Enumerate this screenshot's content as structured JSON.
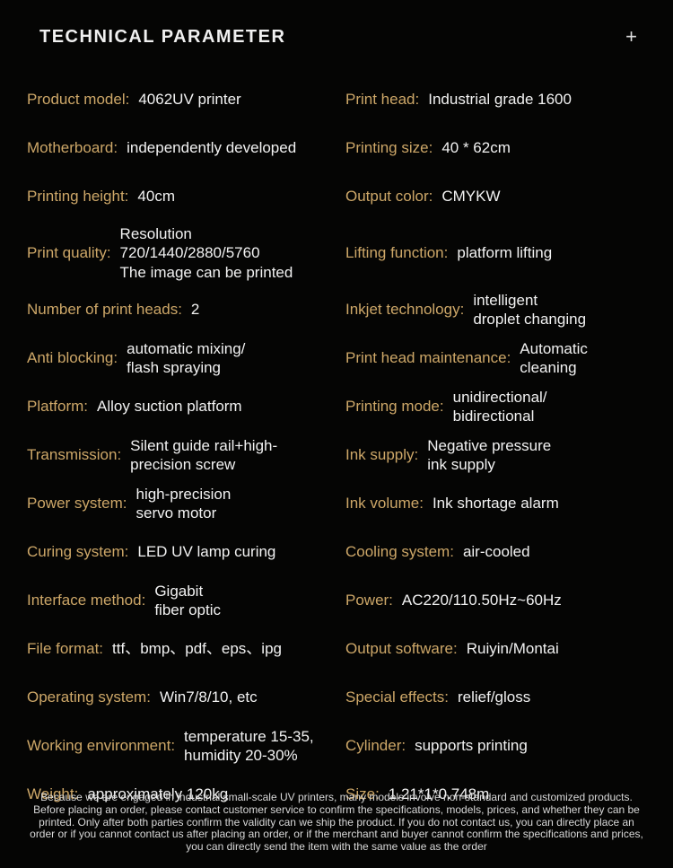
{
  "colors": {
    "background": "#050504",
    "label": "#cda768",
    "value": "#f2f2f2",
    "title": "#f0f0f0",
    "footer": "#d8d8d8"
  },
  "header": {
    "title": "TECHNICAL PARAMETER",
    "plus": "+"
  },
  "rows": [
    {
      "left": {
        "label": "Product model:",
        "value": "4062UV printer"
      },
      "right": {
        "label": "Print head:",
        "value": "Industrial grade 1600"
      }
    },
    {
      "left": {
        "label": "Motherboard:",
        "value": "independently developed"
      },
      "right": {
        "label": "Printing size:",
        "value": "40 * 62cm"
      }
    },
    {
      "left": {
        "label": "Printing height:",
        "value": "40cm"
      },
      "right": {
        "label": "Output color:",
        "value": "CMYKW"
      }
    },
    {
      "left": {
        "label": "Print quality:",
        "value": "Resolution 720/1440/2880/5760\nThe image can be printed",
        "small": true
      },
      "right": {
        "label": "Lifting function:",
        "value": "platform lifting"
      }
    },
    {
      "left": {
        "label": "Number of print heads:",
        "value": "2"
      },
      "right": {
        "label": "Inkjet technology:",
        "value": "intelligent\ndroplet changing"
      }
    },
    {
      "left": {
        "label": "Anti blocking:",
        "value": "automatic mixing/\nflash spraying"
      },
      "right": {
        "label": "Print head maintenance:",
        "value": "Automatic\ncleaning"
      }
    },
    {
      "left": {
        "label": "Platform:",
        "value": "Alloy suction platform"
      },
      "right": {
        "label": "Printing mode:",
        "value": "unidirectional/\nbidirectional"
      }
    },
    {
      "left": {
        "label": "Transmission:",
        "value": "Silent guide rail+high-\nprecision screw"
      },
      "right": {
        "label": "Ink supply:",
        "value": "Negative pressure\nink supply"
      }
    },
    {
      "left": {
        "label": "Power system:",
        "value": "high-precision\nservo motor"
      },
      "right": {
        "label": "Ink volume:",
        "value": "Ink shortage alarm"
      }
    },
    {
      "left": {
        "label": "Curing system:",
        "value": "LED UV lamp curing"
      },
      "right": {
        "label": "Cooling system:",
        "value": "air-cooled"
      }
    },
    {
      "left": {
        "label": "Interface method:",
        "value": "Gigabit\nfiber optic"
      },
      "right": {
        "label": "Power:",
        "value": "AC220/110.50Hz~60Hz"
      }
    },
    {
      "left": {
        "label": "File format:",
        "value": "ttf、bmp、pdf、eps、ipg"
      },
      "right": {
        "label": "Output software:",
        "value": "Ruiyin/Montai"
      }
    },
    {
      "left": {
        "label": "Operating system:",
        "value": "Win7/8/10, etc"
      },
      "right": {
        "label": "Special effects:",
        "value": "relief/gloss"
      }
    },
    {
      "left": {
        "label": "Working environment:",
        "value": "temperature 15-35,\nhumidity 20-30%"
      },
      "right": {
        "label": "Cylinder:",
        "value": "supports printing"
      }
    },
    {
      "left": {
        "label": "Weight:",
        "value": "approximately 120kg"
      },
      "right": {
        "label": "Size:",
        "value": "1.21*1*0.748m"
      }
    }
  ],
  "footer": "Because we are engaged in industrial small-scale UV printers, many models involve non-standard and customized products. Before placing an order, please contact customer service to confirm the specifications, models, prices, and whether they can be printed. Only after both parties confirm the validity can we ship the product. If you do not contact us, you can directly place an order or if you cannot contact us after placing an order, or if the merchant and buyer cannot confirm the specifications and prices, you can directly send the item with the same value as the order"
}
